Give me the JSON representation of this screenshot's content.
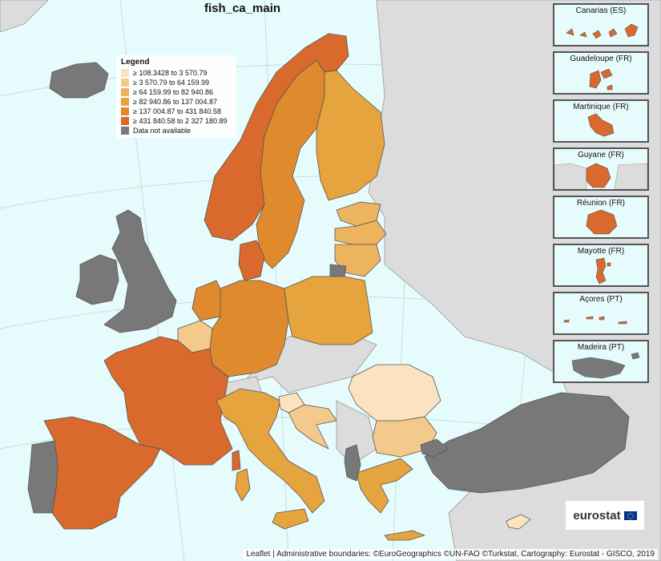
{
  "title": "fish_ca_main",
  "legend": {
    "title": "Legend",
    "items": [
      {
        "label": "≥ 108.3428 to 3 570.79",
        "color": "#fbe3c2"
      },
      {
        "label": "≥ 3 570.79 to 64 159.99",
        "color": "#f4c98c"
      },
      {
        "label": "≥ 64 159.99 to 82 940.86",
        "color": "#ecb45f"
      },
      {
        "label": "≥ 82 940.86 to 137 004.87",
        "color": "#e5a43e"
      },
      {
        "label": "≥ 137 004.87 to 431 840.58",
        "color": "#df8a2c"
      },
      {
        "label": "≥ 431 840.58 to 2 327 180.89",
        "color": "#d9692c"
      },
      {
        "label": "Data not available",
        "color": "#787878"
      }
    ]
  },
  "colors": {
    "sea": "#e6fbfb",
    "non_member": "#dcdcdc",
    "border": "#555555"
  },
  "insets": [
    {
      "label": "Canarias (ES)",
      "class": 6
    },
    {
      "label": "Guadeloupe (FR)",
      "class": 6
    },
    {
      "label": "Martinique (FR)",
      "class": 6
    },
    {
      "label": "Guyane (FR)",
      "class": 6
    },
    {
      "label": "Réunion (FR)",
      "class": 6
    },
    {
      "label": "Mayotte (FR)",
      "class": 6
    },
    {
      "label": "Açores (PT)",
      "class": 6
    },
    {
      "label": "Madeira (PT)",
      "class": 7
    }
  ],
  "regions": [
    {
      "name": "Norway",
      "class": 6
    },
    {
      "name": "Sweden",
      "class": 5
    },
    {
      "name": "Finland",
      "class": 4
    },
    {
      "name": "Estonia",
      "class": 3
    },
    {
      "name": "Latvia",
      "class": 3
    },
    {
      "name": "Lithuania",
      "class": 3
    },
    {
      "name": "Russia (Kaliningrad)",
      "class": 7
    },
    {
      "name": "Iceland",
      "class": 7
    },
    {
      "name": "United Kingdom",
      "class": 7
    },
    {
      "name": "Ireland",
      "class": 7
    },
    {
      "name": "Denmark",
      "class": 6
    },
    {
      "name": "Netherlands",
      "class": 5
    },
    {
      "name": "Belgium",
      "class": 2
    },
    {
      "name": "Germany",
      "class": 5
    },
    {
      "name": "Poland",
      "class": 4
    },
    {
      "name": "France",
      "class": 6
    },
    {
      "name": "Spain",
      "class": 6
    },
    {
      "name": "Portugal",
      "class": 7
    },
    {
      "name": "Italy",
      "class": 4
    },
    {
      "name": "Slovenia",
      "class": 1
    },
    {
      "name": "Croatia",
      "class": 2
    },
    {
      "name": "Romania",
      "class": 1
    },
    {
      "name": "Bulgaria",
      "class": 2
    },
    {
      "name": "Greece",
      "class": 4
    },
    {
      "name": "Cyprus",
      "class": 1
    },
    {
      "name": "Albania",
      "class": 7
    },
    {
      "name": "Turkey",
      "class": 7
    }
  ],
  "attribution": "Leaflet | Administrative boundaries: ©EuroGeographics ©UN-FAO ©Turkstat, Cartography: Eurostat - GISCO, 2019",
  "logo_text": "eurostat"
}
